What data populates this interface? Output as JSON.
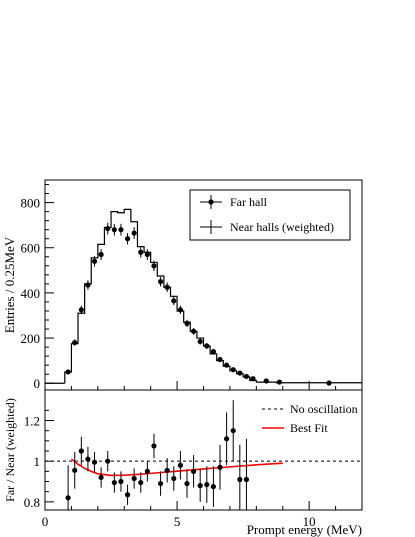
{
  "chart_data": [
    {
      "type": "scatter",
      "panel": "top",
      "xlabel": "",
      "ylabel": "Entries / 0.25MeV",
      "xlim": [
        0,
        12
      ],
      "ylim": [
        -30,
        900
      ],
      "yticks": [
        0,
        200,
        400,
        600,
        800
      ],
      "legend": {
        "placement": "top-right",
        "entries": [
          "Far hall",
          "Near halls (weighted)"
        ]
      },
      "series": [
        {
          "name": "Far hall",
          "style": "points-with-error-bars",
          "x": [
            0.875,
            1.125,
            1.375,
            1.625,
            1.875,
            2.125,
            2.375,
            2.625,
            2.875,
            3.125,
            3.375,
            3.625,
            3.875,
            4.125,
            4.375,
            4.625,
            4.875,
            5.125,
            5.375,
            5.625,
            5.875,
            6.125,
            6.375,
            6.625,
            6.875,
            7.125,
            7.375,
            7.625,
            7.875,
            8.375,
            8.875,
            10.75
          ],
          "y": [
            50,
            180,
            325,
            435,
            540,
            570,
            685,
            680,
            680,
            640,
            665,
            580,
            570,
            520,
            450,
            425,
            365,
            325,
            265,
            230,
            185,
            165,
            140,
            105,
            80,
            60,
            45,
            30,
            20,
            10,
            5,
            1
          ],
          "yerr": [
            8,
            14,
            18,
            21,
            23,
            24,
            26,
            26,
            26,
            25,
            26,
            24,
            24,
            23,
            21,
            21,
            19,
            18,
            16,
            15,
            14,
            13,
            12,
            10,
            9,
            8,
            7,
            6,
            5,
            3,
            2,
            1
          ]
        },
        {
          "name": "Near halls (weighted)",
          "style": "step-histogram",
          "edges": [
            0.75,
            1.0,
            1.25,
            1.5,
            1.75,
            2.0,
            2.25,
            2.5,
            2.75,
            3.0,
            3.25,
            3.5,
            3.75,
            4.0,
            4.25,
            4.5,
            4.75,
            5.0,
            5.25,
            5.5,
            5.75,
            6.0,
            6.25,
            6.5,
            6.75,
            7.0,
            7.25,
            7.5,
            7.75,
            8.0,
            8.75,
            12.0
          ],
          "y": [
            50,
            175,
            310,
            440,
            555,
            615,
            690,
            760,
            755,
            770,
            715,
            605,
            580,
            535,
            475,
            425,
            385,
            320,
            270,
            230,
            200,
            165,
            130,
            100,
            75,
            55,
            42,
            28,
            12,
            5,
            2
          ]
        }
      ]
    },
    {
      "type": "scatter",
      "panel": "bottom",
      "xlabel": "Prompt energy (MeV)",
      "ylabel": "Far / Near (weighted)",
      "xlim": [
        0,
        12
      ],
      "ylim": [
        0.76,
        1.35
      ],
      "xticks": [
        0,
        5,
        10
      ],
      "yticks": [
        0.8,
        1,
        1.2
      ],
      "legend": {
        "placement": "top-right",
        "entries": [
          "No oscillation",
          "Best Fit"
        ]
      },
      "series": [
        {
          "name": "data",
          "style": "points-with-error-bars",
          "x": [
            0.875,
            1.125,
            1.375,
            1.625,
            1.875,
            2.125,
            2.375,
            2.625,
            2.875,
            3.125,
            3.375,
            3.625,
            3.875,
            4.125,
            4.375,
            4.625,
            4.875,
            5.125,
            5.375,
            5.625,
            5.875,
            6.125,
            6.375,
            6.625,
            6.875,
            7.125,
            7.375,
            7.625
          ],
          "y": [
            0.82,
            0.955,
            1.05,
            1.01,
            0.995,
            0.92,
            1.0,
            0.895,
            0.9,
            0.835,
            0.915,
            0.895,
            0.95,
            1.075,
            0.89,
            0.955,
            0.915,
            0.98,
            0.89,
            0.95,
            0.88,
            0.885,
            0.875,
            0.97,
            1.11,
            1.15,
            0.91,
            0.91
          ],
          "yerr": [
            0.16,
            0.09,
            0.07,
            0.06,
            0.05,
            0.05,
            0.05,
            0.05,
            0.05,
            0.05,
            0.05,
            0.05,
            0.05,
            0.06,
            0.06,
            0.06,
            0.06,
            0.07,
            0.07,
            0.08,
            0.08,
            0.09,
            0.1,
            0.11,
            0.13,
            0.15,
            0.17,
            0.2
          ]
        },
        {
          "name": "No oscillation",
          "style": "dashed-line",
          "x": [
            0,
            12
          ],
          "y": [
            1,
            1
          ]
        },
        {
          "name": "Best Fit",
          "style": "red-line",
          "x": [
            1.0,
            1.25,
            1.5,
            1.75,
            2.0,
            2.5,
            3.0,
            3.5,
            4.0,
            5.0,
            6.0,
            7.0,
            8.0,
            9.0
          ],
          "y": [
            1.01,
            0.985,
            0.965,
            0.95,
            0.938,
            0.93,
            0.931,
            0.935,
            0.94,
            0.951,
            0.962,
            0.972,
            0.982,
            0.99
          ]
        }
      ],
      "colors": {
        "best_fit": "#ff0000",
        "axes": "#000000"
      }
    }
  ]
}
